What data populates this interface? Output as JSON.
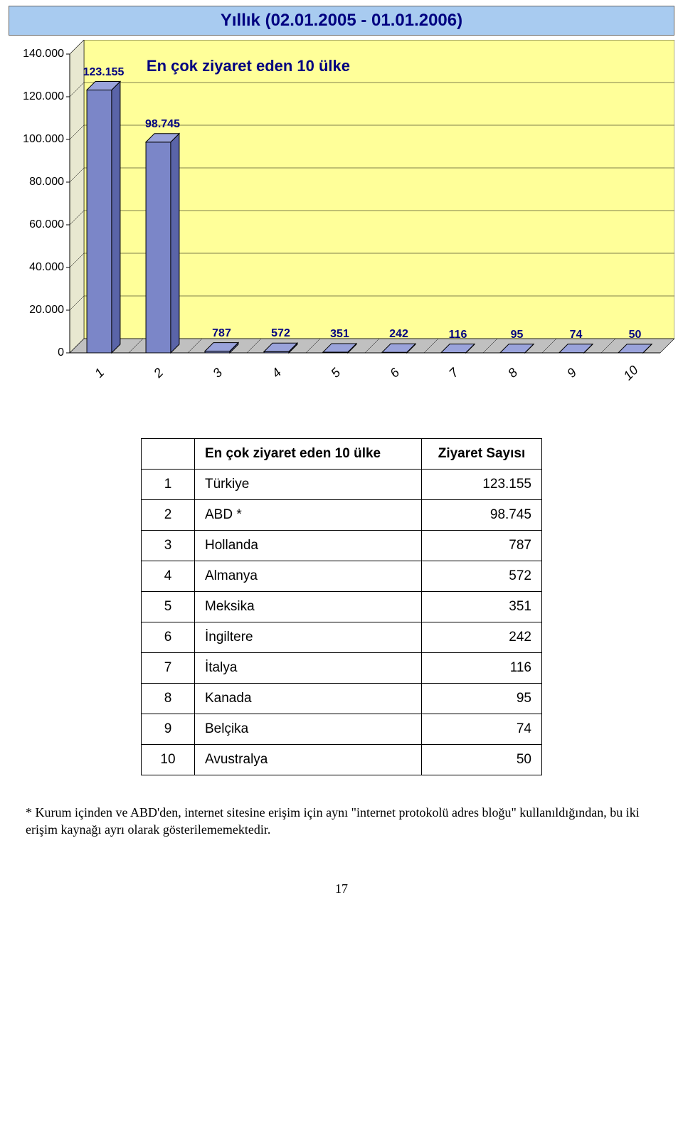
{
  "title": "Yıllık (02.01.2005 - 01.01.2006)",
  "subtitle": "En çok ziyaret eden 10 ülke",
  "page_number": "17",
  "footnote": "* Kurum içinden ve ABD'den, internet sitesine erişim için aynı \"internet protokolü adres bloğu\" kullanıldığından, bu iki erişim kaynağı ayrı olarak gösterilememektedir.",
  "chart": {
    "type": "bar",
    "categories": [
      "1",
      "2",
      "3",
      "4",
      "5",
      "6",
      "7",
      "8",
      "9",
      "10"
    ],
    "values": [
      123155,
      98745,
      787,
      572,
      351,
      242,
      116,
      95,
      74,
      50
    ],
    "value_labels": [
      "123.155",
      "98.745",
      "787",
      "572",
      "351",
      "242",
      "116",
      "95",
      "74",
      "50"
    ],
    "bar_fill": "#7b86c8",
    "bar_border": "#000000",
    "plot_bg": "#ffff99",
    "floor_fill": "#c0c0c0",
    "grid_color": "#000000",
    "title_color": "#000080",
    "label_color": "#000080",
    "y_ticks": [
      "0",
      "20.000",
      "40.000",
      "60.000",
      "80.000",
      "100.000",
      "120.000",
      "140.000"
    ],
    "y_tick_values": [
      0,
      20000,
      40000,
      60000,
      80000,
      100000,
      120000,
      140000
    ],
    "ymax": 140000
  },
  "table": {
    "header_country": "En çok ziyaret eden 10 ülke",
    "header_value": "Ziyaret Sayısı",
    "rows": [
      {
        "rank": "1",
        "country": "Türkiye",
        "value": "123.155"
      },
      {
        "rank": "2",
        "country": "ABD *",
        "value": "98.745"
      },
      {
        "rank": "3",
        "country": "Hollanda",
        "value": "787"
      },
      {
        "rank": "4",
        "country": "Almanya",
        "value": "572"
      },
      {
        "rank": "5",
        "country": "Meksika",
        "value": "351"
      },
      {
        "rank": "6",
        "country": "İngiltere",
        "value": "242"
      },
      {
        "rank": "7",
        "country": "İtalya",
        "value": "116"
      },
      {
        "rank": "8",
        "country": "Kanada",
        "value": "95"
      },
      {
        "rank": "9",
        "country": "Belçika",
        "value": "74"
      },
      {
        "rank": "10",
        "country": "Avustralya",
        "value": "50"
      }
    ]
  }
}
